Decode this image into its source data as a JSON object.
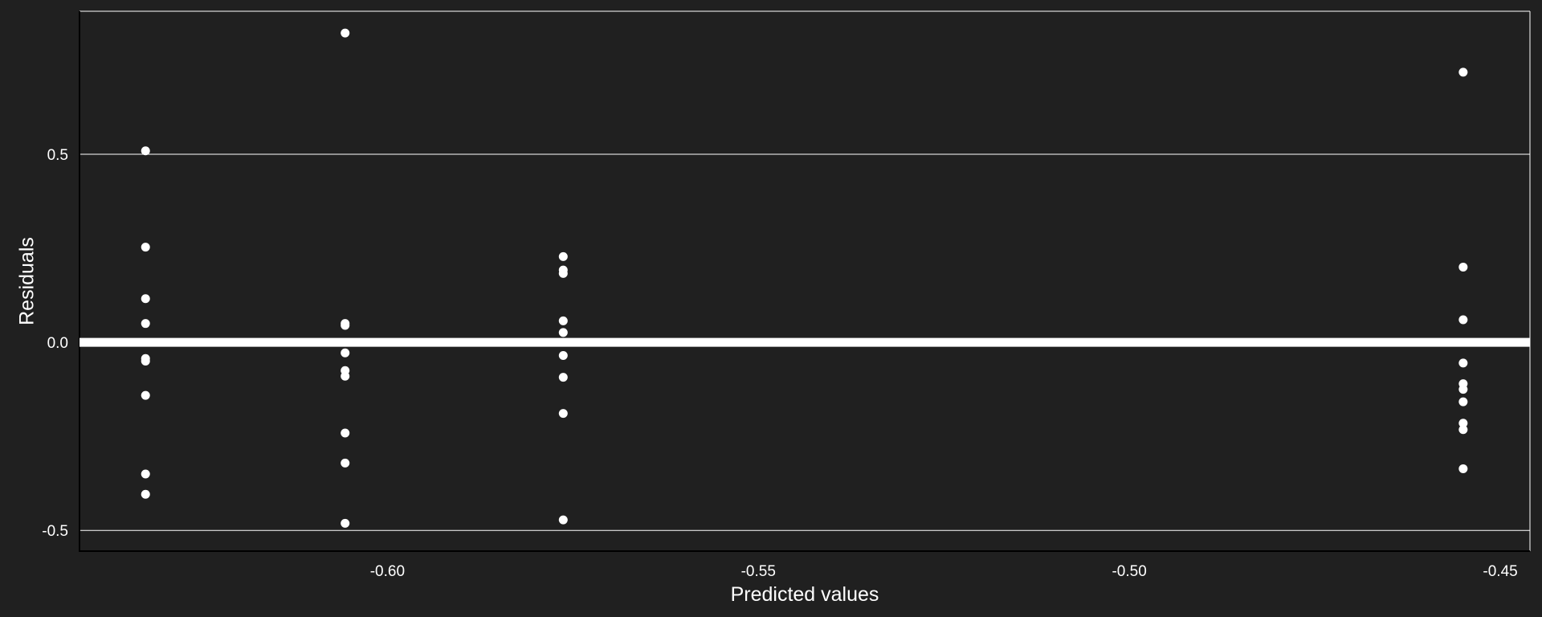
{
  "chart_data": {
    "type": "scatter",
    "title": "",
    "xlabel": "Predicted values",
    "ylabel": "Residuals",
    "xlim": [
      -0.6415,
      -0.446
    ],
    "ylim": [
      -0.555,
      0.88
    ],
    "x_ticks": [
      -0.6,
      -0.55,
      -0.5,
      -0.45
    ],
    "x_tick_labels": [
      "-0.60",
      "-0.55",
      "-0.50",
      "-0.45"
    ],
    "y_ticks": [
      -0.5,
      0.0,
      0.5
    ],
    "y_tick_labels": [
      "-0.5",
      "0.0",
      "0.5"
    ],
    "grid": "horizontal at y ticks",
    "reference_line": 0.0,
    "colors": {
      "background": "#202020",
      "points": "#ffffff",
      "grid": "#ffffff",
      "reference_line": "#ffffff"
    },
    "points": [
      {
        "x": -0.6326,
        "y": 0.509
      },
      {
        "x": -0.6326,
        "y": 0.253
      },
      {
        "x": -0.6326,
        "y": 0.116
      },
      {
        "x": -0.6326,
        "y": 0.05
      },
      {
        "x": -0.6326,
        "y": -0.043
      },
      {
        "x": -0.6326,
        "y": -0.05
      },
      {
        "x": -0.6326,
        "y": -0.141
      },
      {
        "x": -0.6326,
        "y": -0.35
      },
      {
        "x": -0.6326,
        "y": -0.404
      },
      {
        "x": -0.6057,
        "y": 0.822
      },
      {
        "x": -0.6057,
        "y": 0.05
      },
      {
        "x": -0.6057,
        "y": 0.045
      },
      {
        "x": -0.6057,
        "y": -0.028
      },
      {
        "x": -0.6057,
        "y": -0.075
      },
      {
        "x": -0.6057,
        "y": -0.09
      },
      {
        "x": -0.6057,
        "y": -0.241
      },
      {
        "x": -0.6057,
        "y": -0.321
      },
      {
        "x": -0.6057,
        "y": -0.481
      },
      {
        "x": -0.5763,
        "y": 0.228
      },
      {
        "x": -0.5763,
        "y": 0.192
      },
      {
        "x": -0.5763,
        "y": 0.183
      },
      {
        "x": -0.5763,
        "y": 0.057
      },
      {
        "x": -0.5763,
        "y": 0.026
      },
      {
        "x": -0.5763,
        "y": -0.035
      },
      {
        "x": -0.5763,
        "y": -0.093
      },
      {
        "x": -0.5763,
        "y": -0.189
      },
      {
        "x": -0.5763,
        "y": -0.472
      },
      {
        "x": -0.455,
        "y": 0.718
      },
      {
        "x": -0.455,
        "y": 0.2
      },
      {
        "x": -0.455,
        "y": 0.06
      },
      {
        "x": -0.455,
        "y": -0.055
      },
      {
        "x": -0.455,
        "y": -0.11
      },
      {
        "x": -0.455,
        "y": -0.125
      },
      {
        "x": -0.455,
        "y": -0.158
      },
      {
        "x": -0.455,
        "y": -0.215
      },
      {
        "x": -0.455,
        "y": -0.232
      },
      {
        "x": -0.455,
        "y": -0.336
      }
    ]
  }
}
